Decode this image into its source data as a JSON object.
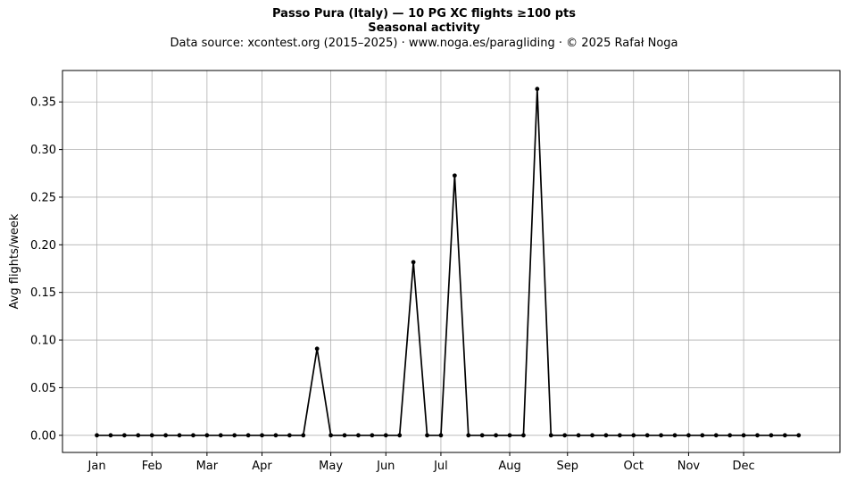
{
  "header": {
    "title": "Passo Pura (Italy)  —  10 PG XC flights ≥100 pts",
    "subtitle": "Seasonal activity",
    "source": "Data source: xcontest.org (2015–2025)  ·  www.noga.es/paragliding  ·  © 2025 Rafał Noga"
  },
  "chart_data": {
    "type": "line",
    "title": "Passo Pura (Italy)  —  10 PG XC flights ≥100 pts",
    "subtitle": "Seasonal activity",
    "xlabel": "",
    "ylabel": "Avg flights/week",
    "x_unit": "week of year",
    "xlim": [
      -2.5,
      54
    ],
    "ylim": [
      -0.018,
      0.383
    ],
    "yticks": [
      0.0,
      0.05,
      0.1,
      0.15,
      0.2,
      0.25,
      0.3,
      0.35
    ],
    "ytick_labels": [
      "0.00",
      "0.05",
      "0.10",
      "0.15",
      "0.20",
      "0.25",
      "0.30",
      "0.35"
    ],
    "xticks": [
      0,
      4,
      8,
      12,
      17,
      21,
      25,
      30,
      34.2,
      39,
      43,
      47
    ],
    "xtick_labels": [
      "Jan",
      "Feb",
      "Mar",
      "Apr",
      "May",
      "Jun",
      "Jul",
      "Aug",
      "Sep",
      "Oct",
      "Nov",
      "Dec"
    ],
    "grid": true,
    "series": [
      {
        "color": "#000000",
        "x": [
          0,
          1,
          2,
          3,
          4,
          5,
          6,
          7,
          8,
          9,
          10,
          11,
          12,
          13,
          14,
          15,
          16,
          17,
          18,
          19,
          20,
          21,
          22,
          23,
          24,
          25,
          26,
          27,
          28,
          29,
          30,
          31,
          32,
          33,
          34,
          35,
          36,
          37,
          38,
          39,
          40,
          41,
          42,
          43,
          44,
          45,
          46,
          47,
          48,
          49,
          50,
          51
        ],
        "values": [
          0,
          0,
          0,
          0,
          0,
          0,
          0,
          0,
          0,
          0,
          0,
          0,
          0,
          0,
          0,
          0,
          0.0909,
          0,
          0,
          0,
          0,
          0,
          0,
          0.1818,
          0,
          0,
          0.2727,
          0,
          0,
          0,
          0,
          0,
          0.3636,
          0,
          0,
          0,
          0,
          0,
          0,
          0,
          0,
          0,
          0,
          0,
          0,
          0,
          0,
          0,
          0,
          0,
          0,
          0
        ]
      }
    ]
  }
}
